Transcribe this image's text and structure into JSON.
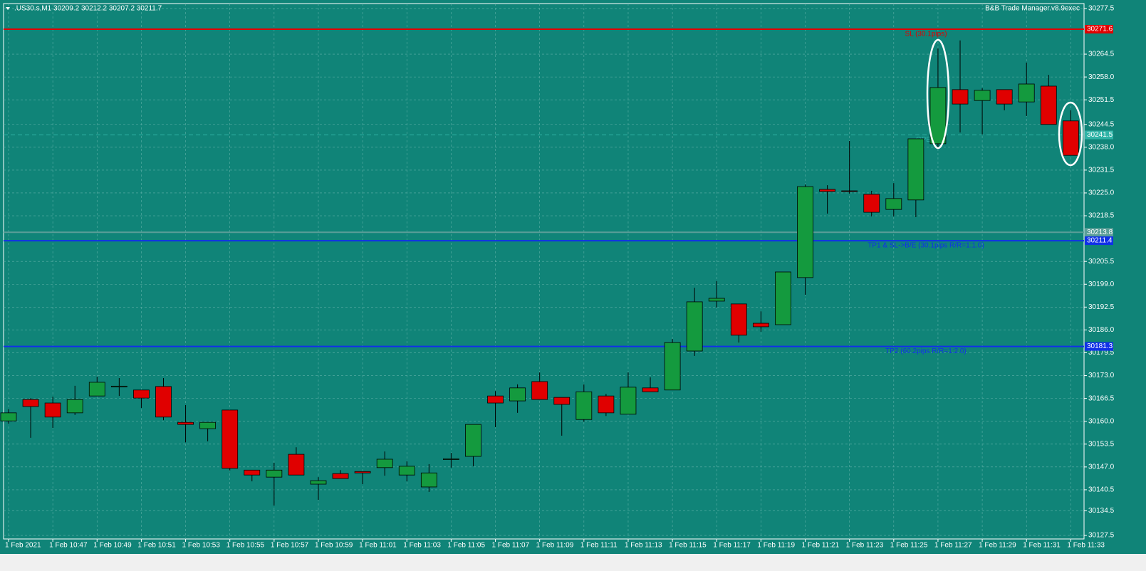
{
  "chart_data": {
    "type": "candlestick",
    "title": ".US30.s,M1  30209.2 30212.2 30207.2 30211.7",
    "indicator": "B&B Trade Manager.v8.9exec",
    "categories": [
      "1 Feb 2021",
      null,
      "1 Feb 10:47",
      null,
      "1 Feb 10:49",
      null,
      "1 Feb 10:51",
      null,
      "1 Feb 10:53",
      null,
      "1 Feb 10:55",
      null,
      "1 Feb 10:57",
      null,
      "1 Feb 10:59",
      null,
      "1 Feb 11:01",
      null,
      "1 Feb 11:03",
      null,
      "1 Feb 11:05",
      null,
      "1 Feb 11:07",
      null,
      "1 Feb 11:09",
      null,
      "1 Feb 11:11",
      null,
      "1 Feb 11:13",
      null,
      "1 Feb 11:15",
      null,
      "1 Feb 11:17",
      null,
      "1 Feb 11:19",
      null,
      "1 Feb 11:21",
      null,
      "1 Feb 11:23",
      null,
      "1 Feb 11:25",
      null,
      "1 Feb 11:27",
      null,
      "1 Feb 11:29",
      null,
      "1 Feb 11:31",
      null,
      "1 Feb 11:33"
    ],
    "open": [
      30160.1,
      30166.2,
      30165.2,
      30162.4,
      30167.2,
      30169.8,
      30168.9,
      30169.9,
      30159.7,
      30157.9,
      30163.2,
      30146.1,
      30144.1,
      30150.6,
      30142.1,
      30145.1,
      30145.7,
      30146.8,
      30144.7,
      30141.3,
      30149.2,
      30150.0,
      30167.2,
      30165.8,
      30171.3,
      30166.8,
      30160.5,
      30167.2,
      30162.0,
      30169.5,
      30168.9,
      30180.0,
      30194.2,
      30193.4,
      30187.9,
      30187.5,
      30200.9,
      30226.0,
      30225.6,
      30224.6,
      30220.3,
      30223.0,
      30239.0,
      30254.4,
      30251.3,
      30254.4,
      30250.9,
      30255.4,
      30245.5
    ],
    "high": [
      30163.4,
      30166.6,
      30167.0,
      30170.1,
      30172.7,
      30172.3,
      30168.9,
      30172.3,
      30164.6,
      30159.7,
      30163.2,
      30146.1,
      30148.2,
      30152.6,
      30144.1,
      30146.1,
      30145.7,
      30151.4,
      30148.6,
      30147.8,
      30151.0,
      30159.1,
      30168.6,
      30170.5,
      30173.9,
      30166.8,
      30170.5,
      30167.8,
      30173.9,
      30172.5,
      30183.4,
      30198.0,
      30199.9,
      30193.4,
      30191.3,
      30202.5,
      30227.4,
      30227.2,
      30239.8,
      30225.6,
      30227.8,
      30240.4,
      30266.1,
      30268.4,
      30254.8,
      30254.4,
      30262.1,
      30258.6,
      30248.5
    ],
    "low": [
      30159.3,
      30155.3,
      30158.1,
      30161.8,
      30167.2,
      30167.2,
      30163.8,
      30160.3,
      30154.0,
      30154.3,
      30146.0,
      30142.9,
      30136.0,
      30144.7,
      30137.6,
      30143.7,
      30142.1,
      30144.5,
      30142.9,
      30139.9,
      30146.8,
      30147.2,
      30158.3,
      30162.4,
      30166.2,
      30155.9,
      30159.9,
      30161.5,
      30162.0,
      30168.4,
      30168.9,
      30178.6,
      30192.4,
      30182.4,
      30185.5,
      30187.5,
      30196.0,
      30219.1,
      30224.8,
      30218.3,
      30218.3,
      30218.1,
      30237.8,
      30242.2,
      30241.6,
      30248.5,
      30246.9,
      30244.5,
      30235.7
    ],
    "close": [
      30162.4,
      30164.2,
      30161.2,
      30166.2,
      30171.1,
      30170.0,
      30166.6,
      30161.2,
      30159.1,
      30159.7,
      30146.6,
      30144.7,
      30146.1,
      30144.7,
      30143.1,
      30143.7,
      30145.3,
      30149.2,
      30147.2,
      30145.3,
      30149.3,
      30159.1,
      30165.2,
      30169.5,
      30166.2,
      30164.8,
      30168.4,
      30162.4,
      30169.7,
      30168.4,
      30182.4,
      30194.0,
      30195.0,
      30184.5,
      30186.9,
      30202.5,
      30226.8,
      30225.4,
      30225.5,
      30219.5,
      30223.4,
      30240.4,
      30255.0,
      30250.3,
      30254.2,
      30250.3,
      30256.0,
      30244.5,
      30235.7
    ],
    "up_color": "#149a3e",
    "down_color": "#e00000",
    "ylim": [
      30126.5,
      30278.9
    ],
    "yticks": [
      30277.5,
      30264.5,
      {
        "value": 30258.0,
        "label": "30258.0"
      },
      30251.5,
      30244.5,
      {
        "value": 30238.0,
        "label": "30238.0"
      },
      30231.5,
      {
        "value": 30225.0,
        "label": "30225.0"
      },
      30218.5,
      30205.5,
      {
        "value": 30199.0,
        "label": "30199.0"
      },
      30192.5,
      {
        "value": 30186.0,
        "label": "30186.0"
      },
      30179.5,
      {
        "value": 30173.0,
        "label": "30173.0"
      },
      30166.5,
      {
        "value": 30160.0,
        "label": "30160.0"
      },
      30153.5,
      {
        "value": 30147.0,
        "label": "30147.0"
      },
      30140.5,
      30134.5,
      30127.5
    ],
    "grid": true,
    "levels": [
      {
        "value": 30271.6,
        "color": "#e00000",
        "text": "SL (30.1pips)",
        "dashed": false
      },
      {
        "value": 30241.5,
        "color": "#2fb3a6",
        "text": "OPEN",
        "dashed": true
      },
      {
        "value": 30213.8,
        "color": "#5a9e98",
        "dashed": false
      },
      {
        "value": 30211.4,
        "color": "#1030e8",
        "text": "TP1 & SL->B/E (30.1pips R/R=1:1.0)",
        "dashed": false
      },
      {
        "value": 30181.3,
        "color": "#1030e8",
        "text": "TP2 (60.2pips R/R=1:2.0)",
        "dashed": false
      }
    ]
  }
}
